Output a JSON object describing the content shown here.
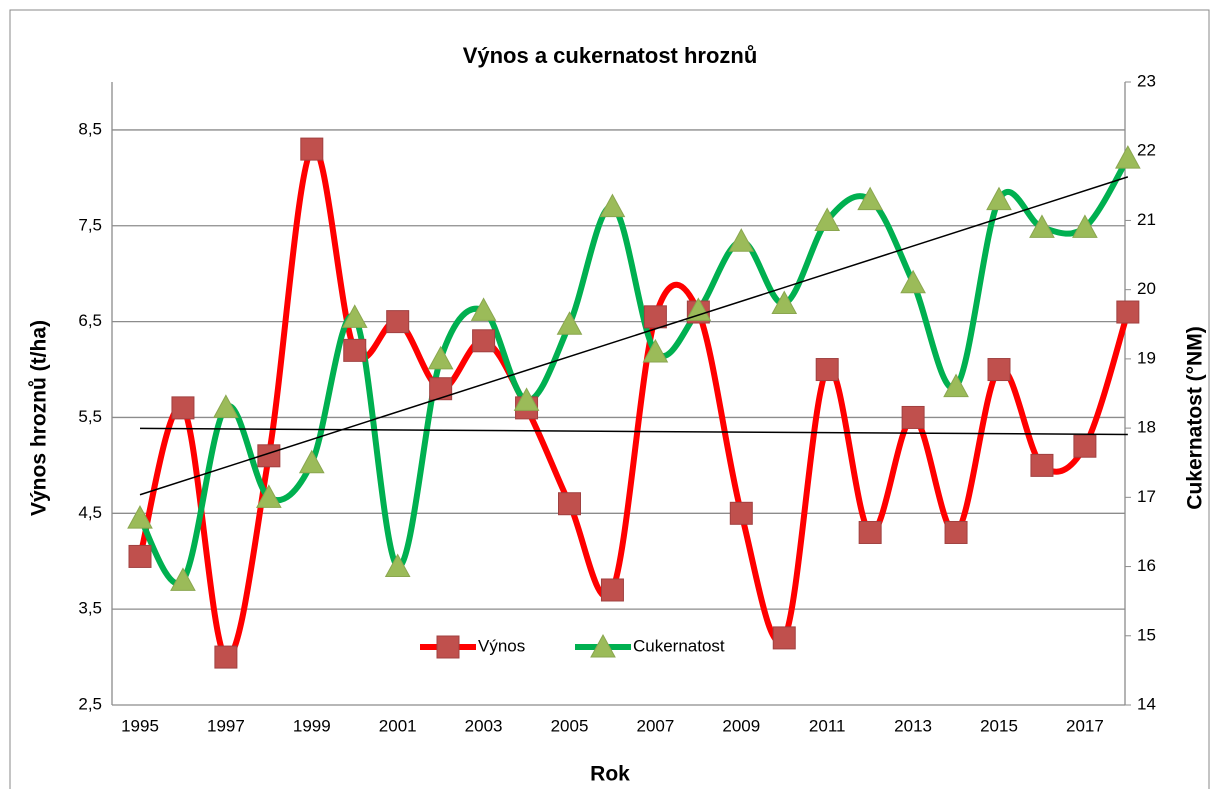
{
  "chart_data": {
    "type": "line",
    "title": "Výnos a cukernatost hroznů",
    "x_label": "Rok",
    "y_label": "Výnos hroznů (t/ha)",
    "y2_label": "Cukernatost (°NM)",
    "categories": [
      "1995",
      null,
      "1997",
      null,
      "1999",
      null,
      "2001",
      null,
      "2003",
      null,
      "2005",
      null,
      "2007",
      null,
      "2009",
      null,
      "2011",
      null,
      "2013",
      null,
      "2015",
      null,
      "2017",
      null
    ],
    "ylim": [
      2.5,
      9.0
    ],
    "yticks": [
      {
        "value": 2.5,
        "label": "2,5"
      },
      {
        "value": 3.5,
        "label": "3,5"
      },
      {
        "value": 4.5,
        "label": "4,5"
      },
      {
        "value": 5.5,
        "label": "5,5"
      },
      {
        "value": 6.5,
        "label": "6,5"
      },
      {
        "value": 7.5,
        "label": "7,5"
      },
      {
        "value": 8.5,
        "label": "8,5"
      }
    ],
    "y2lim": [
      14,
      23
    ],
    "y2ticks": [
      14,
      15,
      16,
      17,
      18,
      19,
      20,
      21,
      22,
      23
    ],
    "grid": true,
    "legend": "bottom",
    "smooth": true,
    "series": [
      {
        "name": "Výnos",
        "color": "#ff0000",
        "marker_color": "#c0504d",
        "marker": "square",
        "trendline": true,
        "values": [
          4.05,
          5.6,
          3.0,
          5.1,
          8.3,
          6.2,
          6.5,
          5.8,
          6.3,
          5.6,
          4.6,
          3.7,
          6.55,
          6.6,
          4.5,
          3.2,
          6.0,
          4.3,
          5.5,
          4.3,
          6.0,
          5.0,
          5.2,
          6.6
        ]
      },
      {
        "name": "Cukernatost",
        "color": "#00b050",
        "marker_color": "#9bbb59",
        "marker": "triangle",
        "trendline": true,
        "axis": "y2",
        "values": [
          16.7,
          15.8,
          18.3,
          17.0,
          17.5,
          19.6,
          16.0,
          19.0,
          19.7,
          18.4,
          19.5,
          21.2,
          19.1,
          19.7,
          20.7,
          19.8,
          21.0,
          21.3,
          20.1,
          18.6,
          21.3,
          20.9,
          20.9,
          21.9
        ]
      }
    ]
  }
}
